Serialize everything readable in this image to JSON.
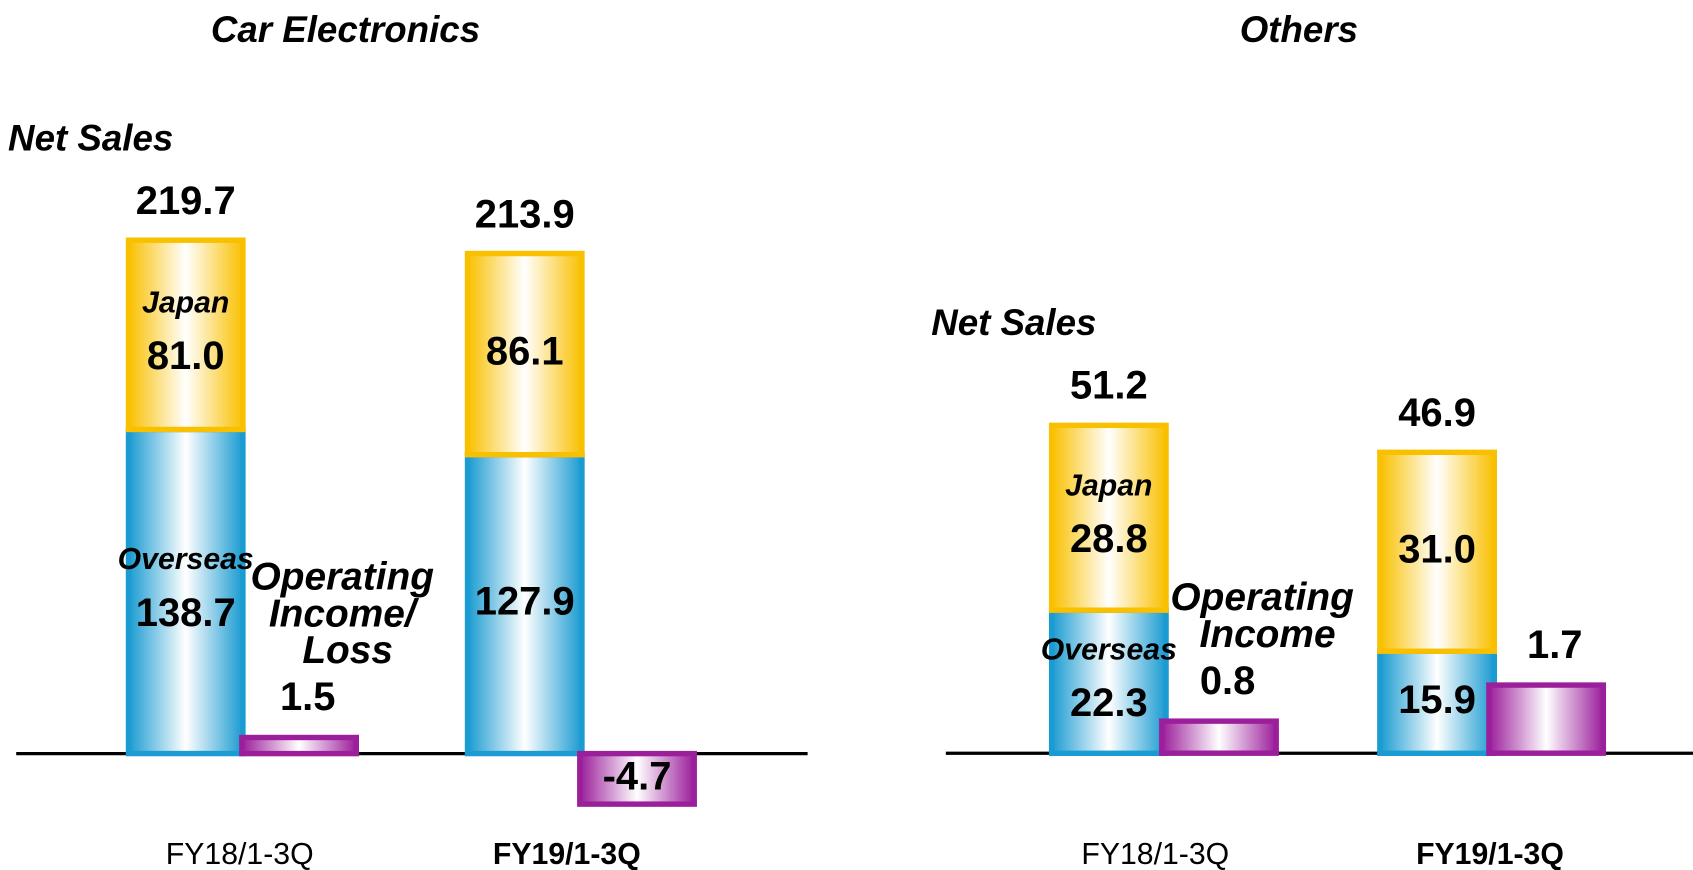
{
  "chart_data": [
    {
      "type": "bar",
      "title": "Car Electronics",
      "annotation": "Net Sales",
      "categories": [
        "FY18/1-3Q",
        "FY19/1-3Q"
      ],
      "series": [
        {
          "name": "Overseas",
          "color": "#1a9bd1",
          "values": [
            138.7,
            127.9
          ]
        },
        {
          "name": "Japan",
          "color": "#f9c000",
          "values": [
            81.0,
            86.1
          ],
          "value_labels": [
            "81.0",
            "86.1"
          ]
        },
        {
          "name": "Operating Income/ Loss",
          "color": "#9b1e9b",
          "axis": "y2",
          "values": [
            1.5,
            -4.7
          ]
        }
      ],
      "totals": [
        219.7,
        213.9
      ],
      "ylim": [
        -29,
        230
      ],
      "y2lim": [
        -6.3,
        50
      ]
    },
    {
      "type": "bar",
      "title": "Others",
      "annotation": "Net Sales",
      "categories": [
        "FY18/1-3Q",
        "FY19/1-3Q"
      ],
      "series": [
        {
          "name": "Overseas",
          "color": "#1a9bd1",
          "values": [
            22.3,
            15.9
          ]
        },
        {
          "name": "Japan",
          "color": "#f9c000",
          "values": [
            28.8,
            31.0
          ],
          "value_labels": [
            "28.8",
            "31.0"
          ]
        },
        {
          "name": "Operating Income",
          "color": "#9b1e9b",
          "axis": "y2",
          "values": [
            0.8,
            1.7
          ]
        }
      ],
      "totals": [
        51.2,
        46.9
      ],
      "ylim": [
        -10.6,
        83.7
      ],
      "y2lim": [
        -1.7,
        13.4
      ]
    }
  ]
}
